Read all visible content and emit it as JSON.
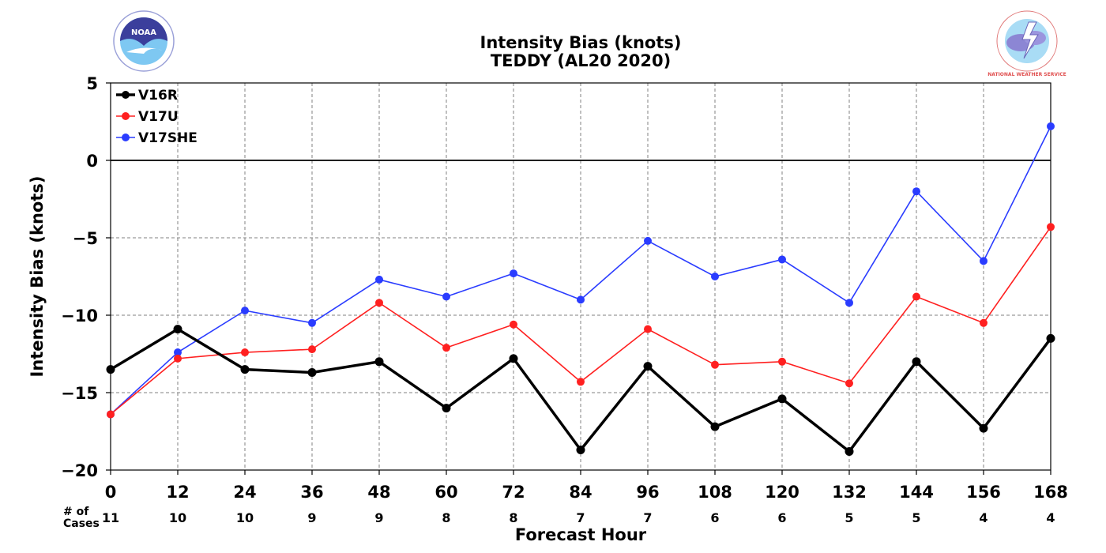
{
  "title_line1": "Intensity Bias (knots)",
  "title_line2": "TEDDY (AL20 2020)",
  "logos": {
    "left": "NOAA",
    "right": "NATIONAL WEATHER SERVICE"
  },
  "chart_data": {
    "type": "line",
    "x": [
      0,
      12,
      24,
      36,
      48,
      60,
      72,
      84,
      96,
      108,
      120,
      132,
      144,
      156,
      168
    ],
    "xlabel": "Forecast Hour",
    "ylabel": "Intensity Bias (knots)",
    "ylim": [
      -20,
      5
    ],
    "yticks": [
      5,
      0,
      -5,
      -10,
      -15,
      -20
    ],
    "ytick_labels": [
      "5",
      "0",
      "−5",
      "−10",
      "−15",
      "−20"
    ],
    "xtick_labels": [
      "0",
      "12",
      "24",
      "36",
      "48",
      "60",
      "72",
      "84",
      "96",
      "108",
      "120",
      "132",
      "144",
      "156",
      "168"
    ],
    "cases_label_line1": "# of",
    "cases_label_line2": "Cases",
    "cases": [
      "11",
      "10",
      "10",
      "9",
      "9",
      "8",
      "8",
      "7",
      "7",
      "6",
      "6",
      "5",
      "5",
      "4",
      "4"
    ],
    "grid": true,
    "zero_line": true,
    "legend_position": "top-left",
    "series": [
      {
        "name": "V16R",
        "color": "#000000",
        "width": 3.5,
        "values": [
          -13.5,
          -10.9,
          -13.5,
          -13.7,
          -13.0,
          -16.0,
          -12.8,
          -18.7,
          -13.3,
          -17.2,
          -15.4,
          -18.8,
          -13.0,
          -17.3,
          -11.5
        ]
      },
      {
        "name": "V17U",
        "color": "#ff2020",
        "width": 1.6,
        "values": [
          -16.4,
          -12.8,
          -12.4,
          -12.2,
          -9.2,
          -12.1,
          -10.6,
          -14.3,
          -10.9,
          -13.2,
          -13.0,
          -14.4,
          -8.8,
          -10.5,
          -4.3
        ]
      },
      {
        "name": "V17SHE",
        "color": "#2a3cff",
        "width": 1.6,
        "values": [
          -16.4,
          -12.4,
          -9.7,
          -10.5,
          -7.7,
          -8.8,
          -7.3,
          -9.0,
          -5.2,
          -7.5,
          -6.4,
          -9.2,
          -2.0,
          -6.5,
          2.2
        ]
      }
    ]
  }
}
